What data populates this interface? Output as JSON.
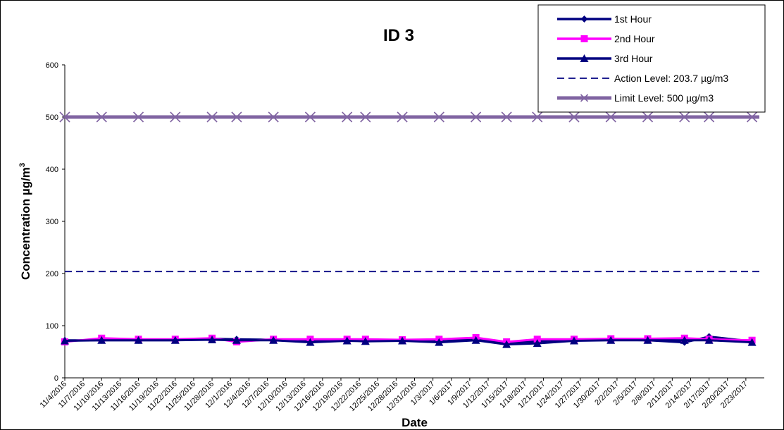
{
  "chart_data": {
    "type": "line",
    "title": "ID 3",
    "xlabel": "Date",
    "ylabel": "Concentration  µg/m",
    "ylabel_sup": "3",
    "ylim": [
      0,
      600
    ],
    "yticks": [
      0,
      100,
      200,
      300,
      400,
      500,
      600
    ],
    "x_tick_labels": [
      "11/4/2016",
      "11/7/2016",
      "11/10/2016",
      "11/13/2016",
      "11/16/2016",
      "11/19/2016",
      "11/22/2016",
      "11/25/2016",
      "11/28/2016",
      "12/1/2016",
      "12/4/2016",
      "12/7/2016",
      "12/10/2016",
      "12/13/2016",
      "12/16/2016",
      "12/19/2016",
      "12/22/2016",
      "12/25/2016",
      "12/28/2016",
      "12/31/2016",
      "1/3/2017",
      "1/6/2017",
      "1/9/2017",
      "1/12/2017",
      "1/15/2017",
      "1/18/2017",
      "1/21/2017",
      "1/24/2017",
      "1/27/2017",
      "1/30/2017",
      "2/2/2017",
      "2/5/2017",
      "2/8/2017",
      "2/11/2017",
      "2/14/2017",
      "2/17/2017",
      "2/20/2017",
      "2/23/2017"
    ],
    "x": [
      "11/4/2016",
      "11/10/2016",
      "11/16/2016",
      "11/22/2016",
      "11/28/2016",
      "12/2/2016",
      "12/8/2016",
      "12/14/2016",
      "12/20/2016",
      "12/23/2016",
      "12/29/2016",
      "1/4/2017",
      "1/10/2017",
      "1/15/2017",
      "1/20/2017",
      "1/26/2017",
      "2/1/2017",
      "2/7/2017",
      "2/13/2017",
      "2/17/2017",
      "2/24/2017"
    ],
    "series": [
      {
        "name": "1st Hour",
        "color": "#000080",
        "marker": "diamond",
        "values": [
          72,
          72,
          72,
          72,
          75,
          74,
          73,
          72,
          72,
          72,
          72,
          72,
          75,
          68,
          70,
          74,
          73,
          72,
          68,
          79,
          70
        ]
      },
      {
        "name": "2nd Hour",
        "color": "#FF00FF",
        "marker": "square",
        "values": [
          69,
          76,
          74,
          74,
          76,
          69,
          74,
          74,
          74,
          74,
          73,
          74,
          77,
          69,
          74,
          74,
          75,
          75,
          76,
          74,
          72
        ]
      },
      {
        "name": "3rd Hour",
        "color": "#000080",
        "marker": "triangle",
        "values": [
          71,
          72,
          72,
          72,
          73,
          72,
          72,
          68,
          71,
          70,
          71,
          68,
          72,
          64,
          66,
          71,
          72,
          72,
          72,
          72,
          68
        ]
      }
    ],
    "reference_lines": [
      {
        "name": "Action Level: 203.7 µg/m3",
        "value": 203.7,
        "color": "#000080",
        "style": "dashed"
      },
      {
        "name": "Limit Level: 500 µg/m3",
        "value": 500,
        "color": "#8064A2",
        "style": "solid",
        "marker": "x"
      }
    ],
    "grid": false,
    "legend_position": "top-right"
  }
}
